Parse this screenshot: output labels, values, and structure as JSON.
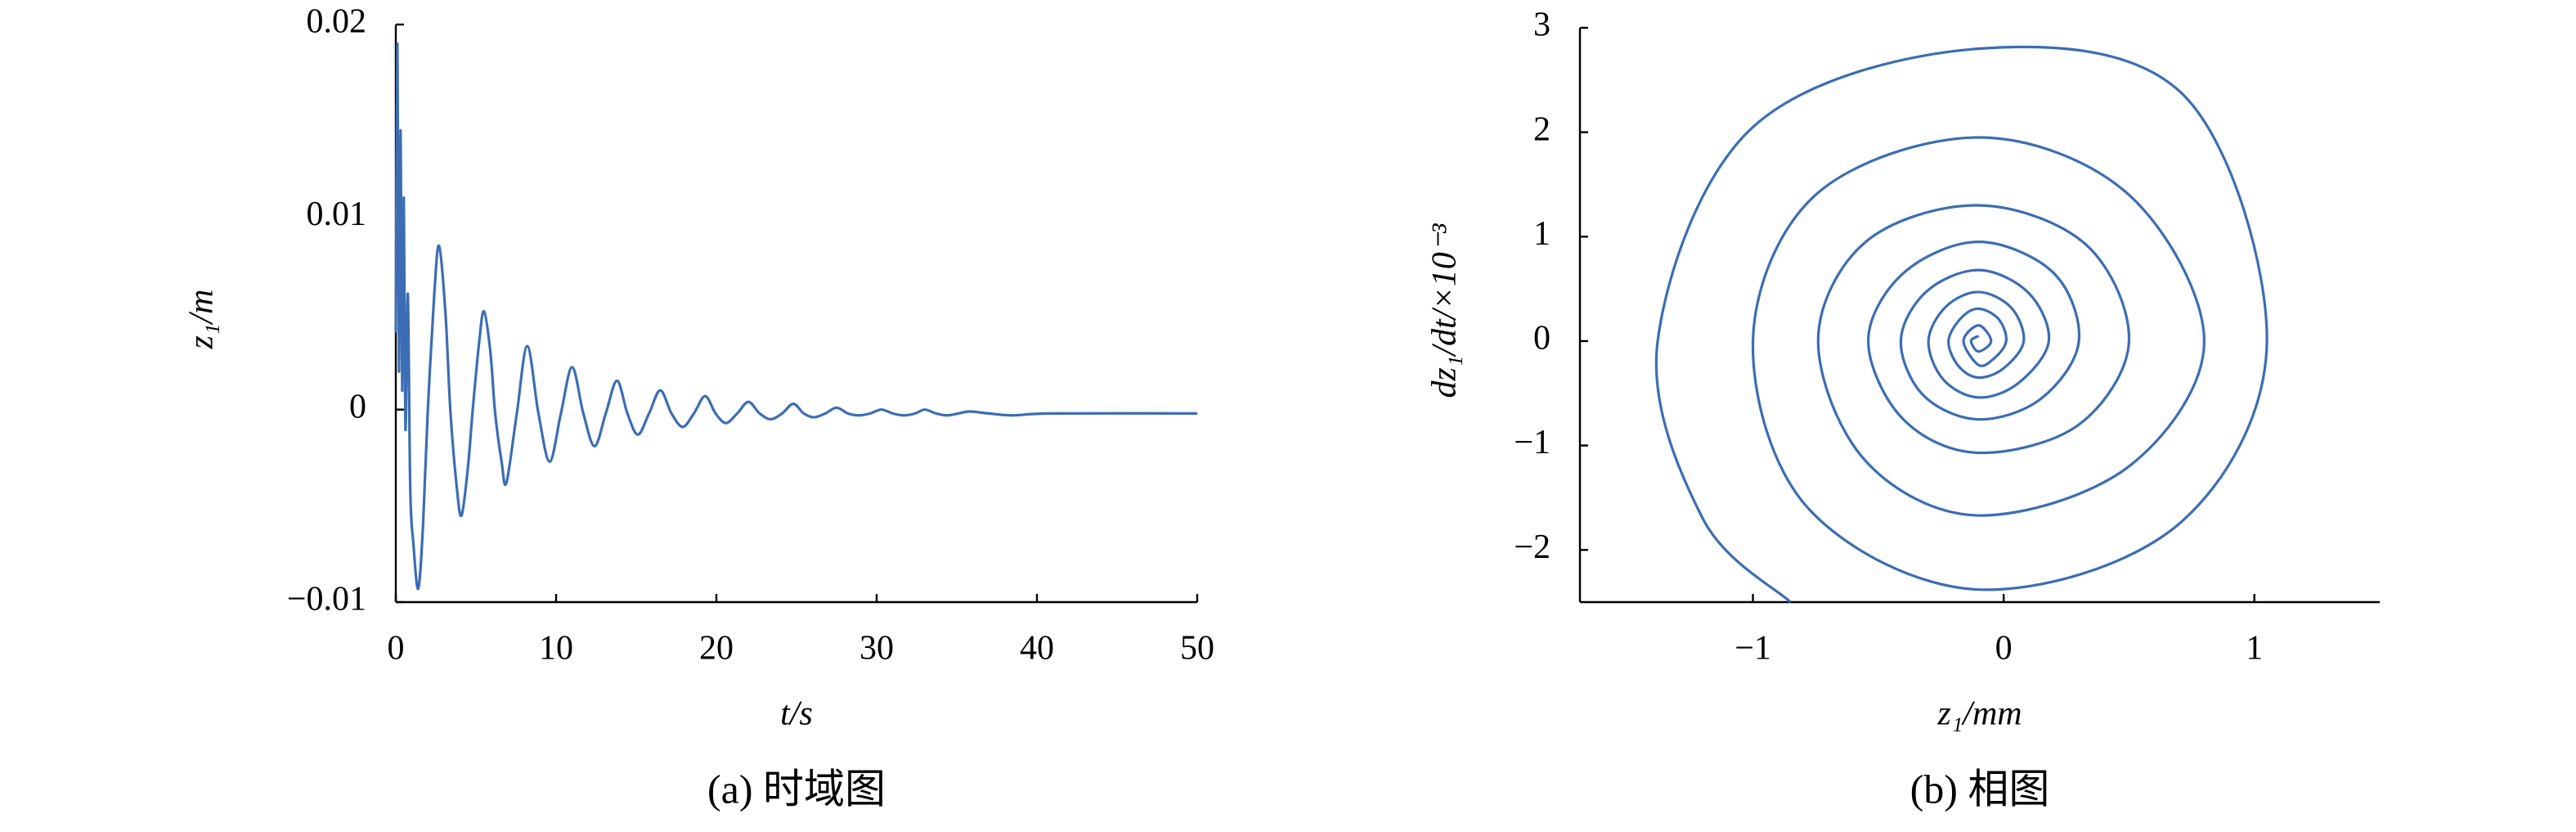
{
  "chart_data": [
    {
      "type": "line",
      "caption": "(a) 时域图",
      "xlabel": "t/s",
      "ylabel": "z₁/m",
      "xlim": [
        0,
        50
      ],
      "xticks": [
        0,
        10,
        20,
        30,
        40,
        50
      ],
      "ylim": [
        -0.01,
        0.02
      ],
      "yticks": [
        {
          "value": -0.01,
          "label": "−0.01"
        },
        0,
        0.01,
        0.02
      ],
      "x": [
        0,
        0.1,
        0.2,
        0.3,
        0.4,
        0.5,
        0.6,
        0.75,
        0.9,
        1.1,
        1.4,
        1.7,
        2.0,
        2.4,
        2.7,
        3.1,
        3.4,
        3.8,
        4.1,
        4.5,
        4.8,
        5.2,
        5.5,
        5.9,
        6.2,
        6.6,
        6.9,
        7.55,
        8.2,
        8.9,
        9.6,
        10.3,
        11,
        11.7,
        12.4,
        13.1,
        13.8,
        14.45,
        15.1,
        15.8,
        16.5,
        17.2,
        17.9,
        18.6,
        19.3,
        19.95,
        20.6,
        21.3,
        22,
        22.7,
        23.4,
        24.1,
        24.8,
        25.45,
        26.1,
        26.8,
        27.5,
        28.2,
        28.9,
        29.6,
        30.3,
        31,
        31.7,
        32.4,
        33,
        33.7,
        34.4,
        35.1,
        35.8,
        37,
        38.5,
        41,
        50
      ],
      "series": [
        {
          "color": "#3c6db4",
          "values": [
            0.004,
            0.019,
            0.002,
            0.0145,
            0.001,
            0.011,
            -0.001,
            0.006,
            -0.004,
            -0.007,
            -0.0093,
            -0.006,
            0.0,
            0.006,
            0.0085,
            0.005,
            0.0,
            -0.004,
            -0.0055,
            -0.003,
            0.0,
            0.0035,
            0.0051,
            0.003,
            -0.0002,
            -0.0027,
            -0.0038,
            -0.0002,
            0.0033,
            -0.0002,
            -0.0027,
            -0.0002,
            0.0022,
            -0.0002,
            -0.0019,
            -0.0002,
            0.0015,
            -0.0002,
            -0.0013,
            -0.0002,
            0.001,
            -0.0002,
            -0.0009,
            -0.0002,
            0.0007,
            -0.0002,
            -0.0007,
            -0.0002,
            0.0004,
            -0.0002,
            -0.0005,
            -0.0002,
            0.0003,
            -0.0002,
            -0.0004,
            -0.0002,
            0.0001,
            -0.0002,
            -0.0003,
            -0.0002,
            0.0,
            -0.0002,
            -0.0003,
            -0.0002,
            0.0,
            -0.0002,
            -0.0003,
            -0.0002,
            -0.0001,
            -0.0002,
            -0.0003,
            -0.0002,
            -0.0002
          ]
        }
      ]
    },
    {
      "type": "line",
      "caption": "(b) 相图",
      "xlabel": "z₁/mm",
      "ylabel": "dz₁/dt/×10⁻³",
      "xlim": [
        -1.69,
        1.5
      ],
      "xticks": [
        {
          "value": -1,
          "label": "−1"
        },
        0,
        1
      ],
      "ylim": [
        -2.5,
        3
      ],
      "yticks": [
        {
          "value": -2,
          "label": "−2"
        },
        {
          "value": -1,
          "label": "−1"
        },
        0,
        1,
        2,
        3
      ],
      "x": [
        -0.85,
        -1.2,
        -1.38,
        -1.0,
        -0.1,
        0.72,
        1.05,
        0.7,
        -0.1,
        -0.78,
        -1.0,
        -0.75,
        -0.1,
        0.5,
        0.8,
        0.5,
        -0.1,
        -0.55,
        -0.74,
        -0.55,
        -0.1,
        0.33,
        0.5,
        0.3,
        -0.1,
        -0.4,
        -0.54,
        -0.4,
        -0.1,
        0.2,
        0.3,
        0.15,
        -0.1,
        -0.32,
        -0.41,
        -0.31,
        -0.1,
        0.1,
        0.18,
        0.06,
        -0.1,
        -0.24,
        -0.3,
        -0.23,
        -0.1,
        0.03,
        0.08,
        0.0,
        -0.1,
        -0.18,
        -0.22,
        -0.17,
        -0.1,
        -0.02,
        0.01,
        -0.04,
        -0.1,
        -0.16,
        -0.1,
        -0.05,
        -0.1,
        -0.13,
        -0.1
      ],
      "series": [
        {
          "color": "#3c6db4",
          "values": [
            -2.5,
            -1.7,
            0,
            2.05,
            2.8,
            2.35,
            0,
            -1.75,
            -2.38,
            -1.6,
            0,
            1.4,
            1.95,
            1.4,
            0,
            -1.2,
            -1.67,
            -1.15,
            0,
            0.95,
            1.3,
            0.92,
            0,
            -0.8,
            -1.07,
            -0.75,
            0,
            0.65,
            0.95,
            0.65,
            0,
            -0.55,
            -0.75,
            -0.52,
            0,
            0.47,
            0.68,
            0.46,
            0,
            -0.4,
            -0.54,
            -0.37,
            0,
            0.33,
            0.47,
            0.32,
            0,
            -0.26,
            -0.35,
            -0.24,
            0,
            0.22,
            0.31,
            0.21,
            0,
            -0.17,
            -0.23,
            0,
            0.15,
            0,
            -0.1,
            0,
            0.05
          ]
        }
      ]
    }
  ]
}
